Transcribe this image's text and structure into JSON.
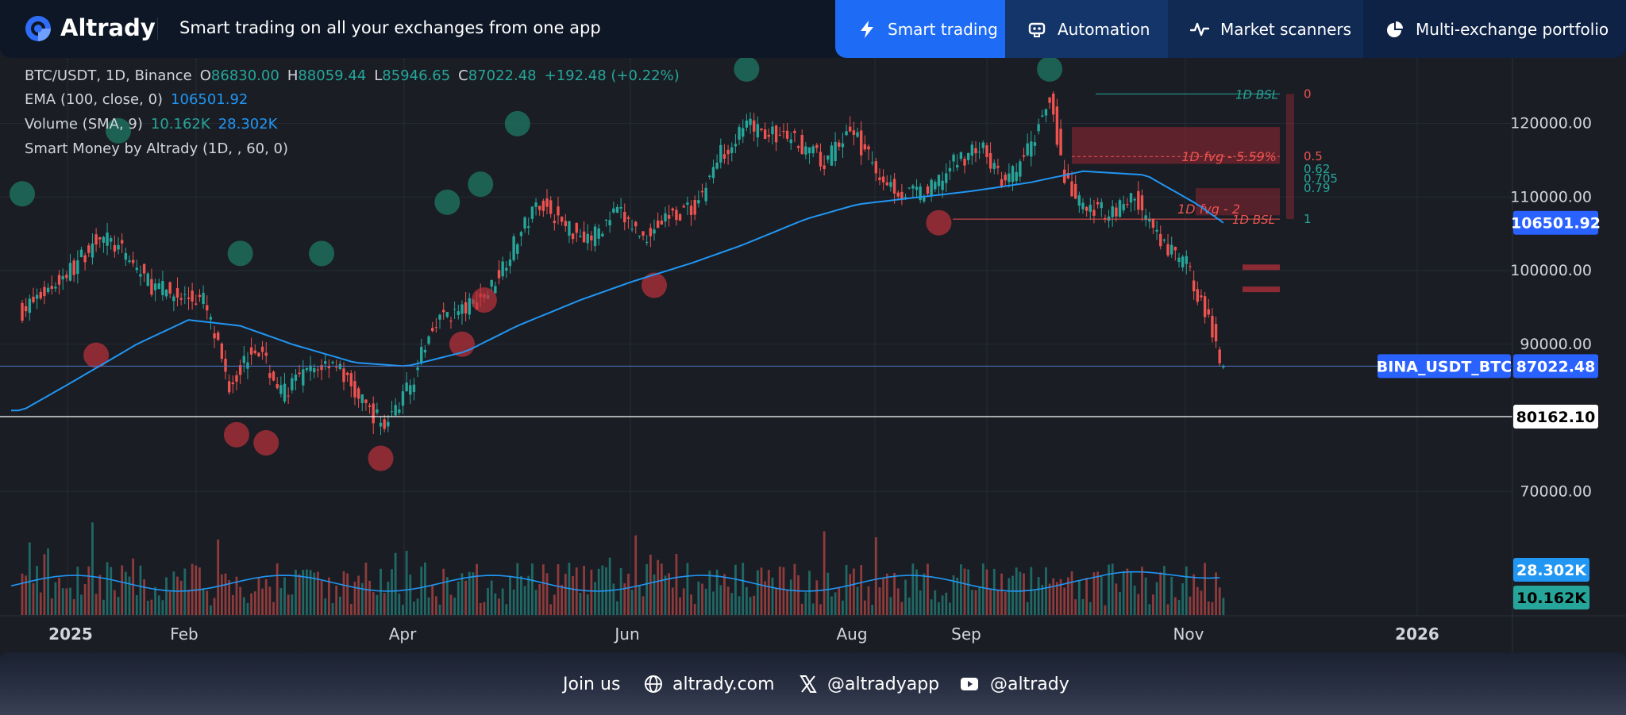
{
  "header": {
    "brand": "Altrady",
    "tagline": "Smart trading on all your exchanges from one app",
    "tabs": [
      {
        "label": "Smart trading",
        "icon": "bolt-icon"
      },
      {
        "label": "Automation",
        "icon": "bot-icon"
      },
      {
        "label": "Market scanners",
        "icon": "pulse-icon"
      },
      {
        "label": "Multi-exchange portfolio",
        "icon": "pie-icon"
      }
    ]
  },
  "legend": {
    "symbol": "BTC/USDT, 1D, Binance",
    "o_label": "O",
    "o": "86830.00",
    "h_label": "H",
    "h": "88059.44",
    "l_label": "L",
    "l": "85946.65",
    "c_label": "C",
    "c": "87022.48",
    "change": "+192.48 (+0.22%)",
    "ema_label": "EMA (100, close, 0)",
    "ema_value": "106501.92",
    "volume_label": "Volume (SMA, 9)",
    "volume_value": "10.162K",
    "volume_sma": "28.302K",
    "smc_label": "Smart Money by Altrady (1D, , 60, 0)"
  },
  "chart_data": {
    "type": "line",
    "title": "BTC/USDT, 1D, Binance",
    "xlabel": "",
    "ylabel": "",
    "x_ticks": [
      "2025",
      "Feb",
      "Apr",
      "Jun",
      "Aug",
      "Sep",
      "Nov",
      "2026"
    ],
    "y_ticks": [
      "120000.00",
      "110000.00",
      "100000.00",
      "90000.00",
      "70000.00"
    ],
    "ylim": [
      73000,
      127000
    ],
    "grid": true,
    "series": [
      {
        "name": "BTC/USDT close",
        "color": "#26a69a",
        "x": [
          "2025-01-01",
          "2025-01-08",
          "2025-01-15",
          "2025-01-22",
          "2025-01-29",
          "2025-02-05",
          "2025-02-12",
          "2025-02-19",
          "2025-02-26",
          "2025-03-05",
          "2025-03-12",
          "2025-03-19",
          "2025-03-26",
          "2025-04-02",
          "2025-04-09",
          "2025-04-16",
          "2025-04-23",
          "2025-04-30",
          "2025-05-07",
          "2025-05-14",
          "2025-05-21",
          "2025-05-28",
          "2025-06-04",
          "2025-06-11",
          "2025-06-18",
          "2025-06-25",
          "2025-07-02",
          "2025-07-09",
          "2025-07-16",
          "2025-07-23",
          "2025-07-30",
          "2025-08-06",
          "2025-08-13",
          "2025-08-20",
          "2025-08-27",
          "2025-09-03",
          "2025-09-10",
          "2025-09-17",
          "2025-09-24",
          "2025-10-01",
          "2025-10-06",
          "2025-10-10",
          "2025-10-15",
          "2025-10-22",
          "2025-10-29",
          "2025-11-05",
          "2025-11-12",
          "2025-11-19",
          "2025-11-22"
        ],
        "values": [
          94500,
          97500,
          100500,
          105000,
          102000,
          98000,
          96500,
          96000,
          84500,
          90000,
          83500,
          86000,
          88000,
          82500,
          79000,
          84500,
          93500,
          94500,
          97000,
          103500,
          109500,
          106000,
          104500,
          108000,
          104500,
          107500,
          108500,
          116000,
          119500,
          118500,
          117500,
          114500,
          119500,
          113500,
          110500,
          110500,
          114500,
          117000,
          111500,
          117000,
          124000,
          112000,
          108500,
          108000,
          110000,
          103500,
          101000,
          91500,
          87022
        ]
      },
      {
        "name": "EMA (100, close, 0)",
        "color": "#2196f3",
        "x": [
          "2025-01-01",
          "2025-01-15",
          "2025-02-01",
          "2025-02-15",
          "2025-03-01",
          "2025-03-15",
          "2025-04-01",
          "2025-04-15",
          "2025-05-01",
          "2025-05-15",
          "2025-06-01",
          "2025-06-15",
          "2025-07-01",
          "2025-07-15",
          "2025-08-01",
          "2025-08-15",
          "2025-09-01",
          "2025-09-15",
          "2025-10-01",
          "2025-10-15",
          "2025-11-01",
          "2025-11-15",
          "2025-11-22"
        ],
        "values": [
          81000,
          85000,
          90000,
          93300,
          92500,
          90000,
          87500,
          87000,
          89000,
          92500,
          96000,
          98500,
          101000,
          103500,
          107000,
          109000,
          110000,
          110800,
          112000,
          113500,
          113000,
          109000,
          106501.92
        ]
      }
    ],
    "volume": {
      "label": "Volume (SMA, 9)",
      "current": "10.162K",
      "sma": "28.302K"
    },
    "annotations": {
      "bsl_labels": [
        "1D BSL",
        "1D BSL"
      ],
      "fvg_labels": [
        "1D fvg - 5.59%",
        "1D fvg - 2"
      ],
      "fib_levels": [
        "0",
        "0.5",
        "0.62",
        "0.705",
        "0.79",
        "1"
      ],
      "price_labels": [
        {
          "text": "106501.92",
          "color": "#2962ff"
        },
        {
          "text": "BINA_USDT_BTC",
          "color": "#2962ff"
        },
        {
          "text": "87022.48",
          "color": "#2962ff"
        },
        {
          "text": "80162.10",
          "color": "#ffffff"
        },
        {
          "text": "28.302K",
          "color": "#2196f3"
        },
        {
          "text": "10.162K",
          "color": "#26a69a"
        }
      ]
    }
  },
  "footer": {
    "join": "Join us",
    "website": "altrady.com",
    "x_handle": "@altradyapp",
    "youtube": "@altrady"
  }
}
